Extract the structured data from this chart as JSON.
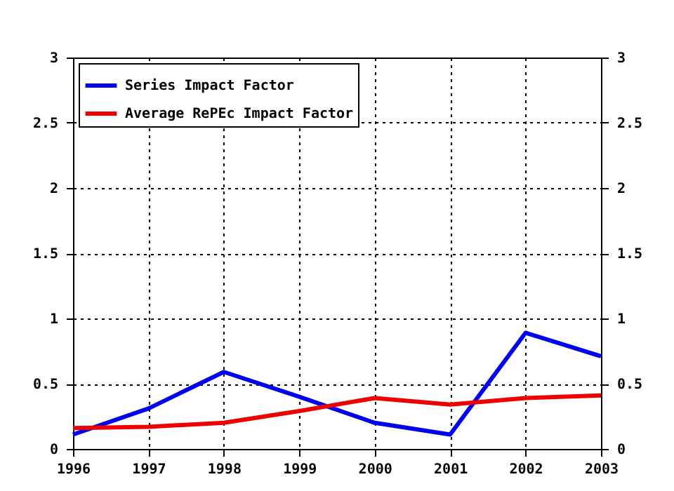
{
  "chart_data": {
    "type": "line",
    "x": [
      1996,
      1997,
      1998,
      1999,
      2000,
      2001,
      2002,
      2003
    ],
    "series": [
      {
        "name": "Series Impact Factor",
        "color": "#0000ee",
        "values": [
          0.11,
          0.31,
          0.59,
          0.4,
          0.2,
          0.11,
          0.89,
          0.71
        ]
      },
      {
        "name": "Average RePEc Impact Factor",
        "color": "#ee0000",
        "values": [
          0.16,
          0.17,
          0.2,
          0.29,
          0.39,
          0.34,
          0.39,
          0.41
        ]
      }
    ],
    "xlim": [
      1996,
      2003
    ],
    "xticks": [
      1996,
      1997,
      1998,
      1999,
      2000,
      2001,
      2002,
      2003
    ],
    "ylim": [
      0,
      3
    ],
    "yticks": [
      0,
      0.5,
      1,
      1.5,
      2,
      2.5,
      3
    ],
    "y2lim": [
      0,
      3
    ],
    "y2ticks": [
      0,
      0.5,
      1,
      1.5,
      2,
      2.5,
      3
    ],
    "grid": true,
    "legend": "top left",
    "marker": "none",
    "line_style": "solid"
  }
}
